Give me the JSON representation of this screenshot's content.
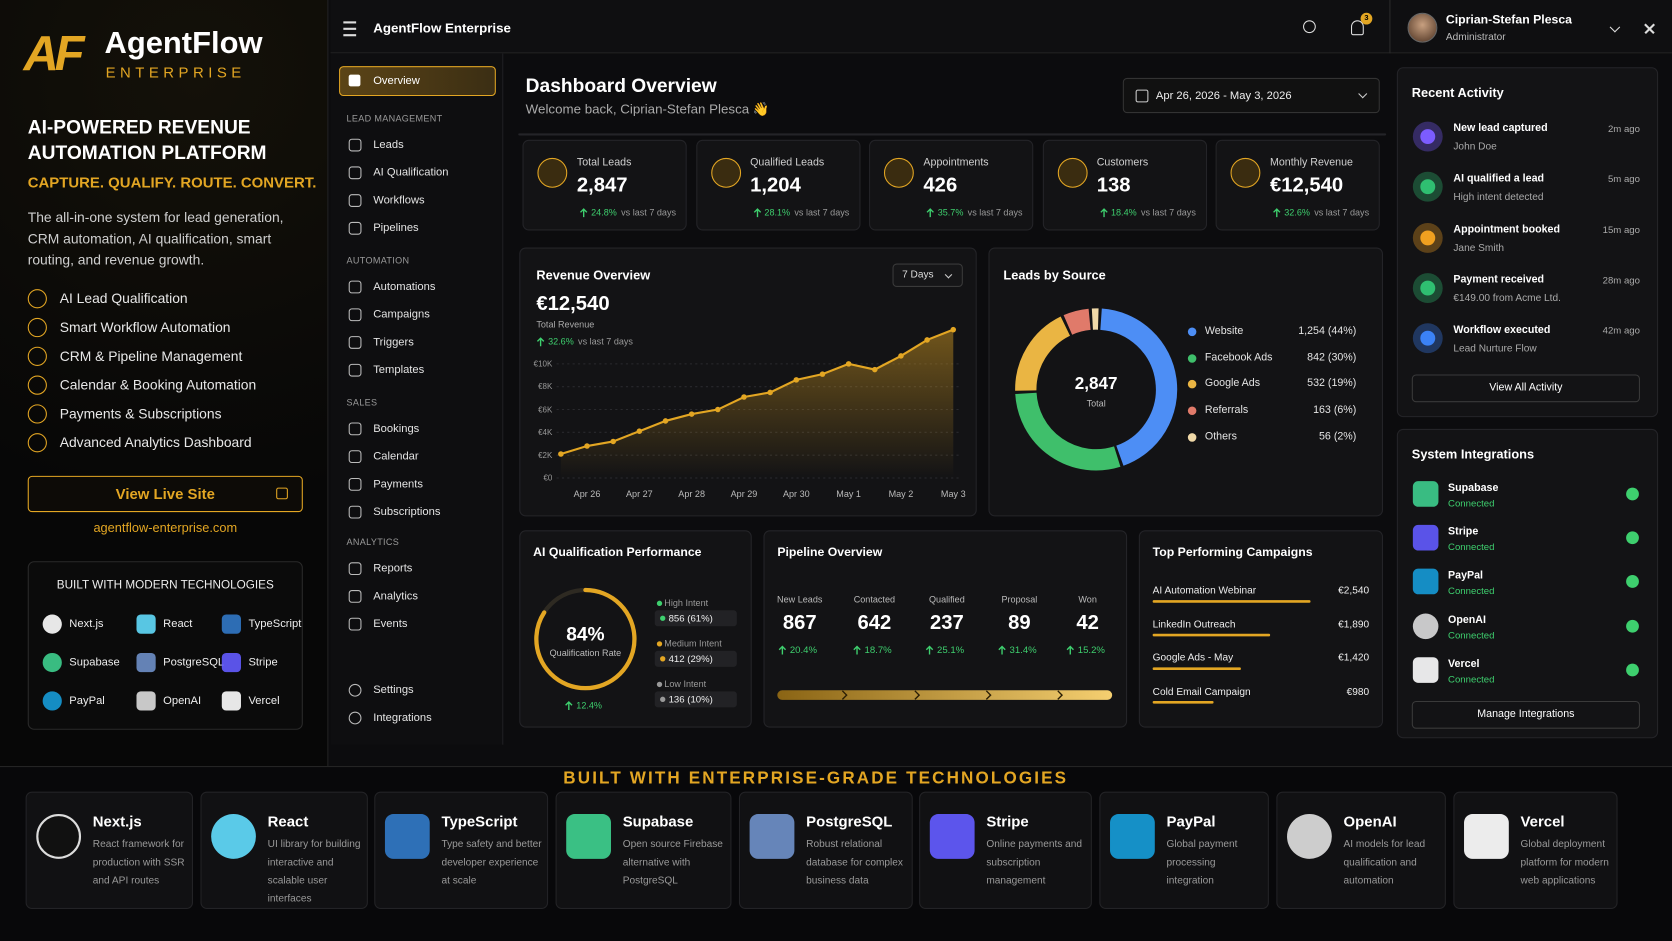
{
  "brand": {
    "logo": "AF",
    "name": "AgentFlow",
    "sub": "ENTERPRISE"
  },
  "promo": {
    "headline": "AI-POWERED REVENUE AUTOMATION PLATFORM",
    "tagline": "CAPTURE. QUALIFY. ROUTE. CONVERT.",
    "description": "The all-in-one system for lead generation, CRM automation, AI qualification, smart routing, and revenue growth.",
    "features": [
      "AI Lead Qualification",
      "Smart Workflow Automation",
      "CRM & Pipeline Management",
      "Calendar & Booking Automation",
      "Payments & Subscriptions",
      "Advanced Analytics Dashboard"
    ],
    "cta": "View Live Site",
    "url": "agentflow-enterprise.com",
    "tech_title": "BUILT WITH MODERN TECHNOLOGIES",
    "tech": [
      "Next.js",
      "React",
      "TypeScript",
      "Supabase",
      "PostgreSQL",
      "Stripe",
      "PayPal",
      "OpenAI",
      "Vercel"
    ]
  },
  "topbar": {
    "app": "AgentFlow Enterprise",
    "notifications": "3",
    "user": "Ciprian-Stefan Plesca",
    "role": "Administrator"
  },
  "sidebar": {
    "active": "Overview",
    "sections": [
      {
        "title": "LEAD MANAGEMENT",
        "items": [
          "Leads",
          "AI Qualification",
          "Workflows",
          "Pipelines"
        ]
      },
      {
        "title": "AUTOMATION",
        "items": [
          "Automations",
          "Campaigns",
          "Triggers",
          "Templates"
        ]
      },
      {
        "title": "SALES",
        "items": [
          "Bookings",
          "Calendar",
          "Payments",
          "Subscriptions"
        ]
      },
      {
        "title": "ANALYTICS",
        "items": [
          "Reports",
          "Analytics",
          "Events"
        ]
      }
    ],
    "footer": [
      "Settings",
      "Integrations"
    ]
  },
  "header": {
    "title": "Dashboard Overview",
    "welcome": "Welcome back, Ciprian-Stefan Plesca 👋",
    "date_range": "Apr 26, 2026 - May 3, 2026"
  },
  "kpis": [
    {
      "label": "Total Leads",
      "value": "2,847",
      "change": "24.8%",
      "note": "vs last 7 days"
    },
    {
      "label": "Qualified Leads",
      "value": "1,204",
      "change": "28.1%",
      "note": "vs last 7 days"
    },
    {
      "label": "Appointments",
      "value": "426",
      "change": "35.7%",
      "note": "vs last 7 days"
    },
    {
      "label": "Customers",
      "value": "138",
      "change": "18.4%",
      "note": "vs last 7 days"
    },
    {
      "label": "Monthly Revenue",
      "value": "€12,540",
      "change": "32.6%",
      "note": "vs last 7 days"
    }
  ],
  "chart_data": [
    {
      "type": "line",
      "title": "Revenue Overview",
      "range": "7 Days",
      "total": "€12,540",
      "total_label": "Total Revenue",
      "change": "32.6%",
      "change_note": "vs last 7 days",
      "color": "#e3a623",
      "categories": [
        null,
        "Apr 26",
        null,
        "Apr 27",
        null,
        "Apr 28",
        null,
        "Apr 29",
        null,
        "Apr 30",
        null,
        "May 1",
        null,
        "May 2",
        null,
        "May 3"
      ],
      "values": [
        2100,
        2800,
        3200,
        4100,
        5000,
        5600,
        6000,
        7100,
        7500,
        8600,
        9100,
        10000,
        9500,
        10700,
        12100,
        13000
      ],
      "ylim": [
        0,
        13000
      ],
      "yticks": [
        {
          "value": 0,
          "label": "€0"
        },
        {
          "value": 2000,
          "label": "€2K"
        },
        {
          "value": 4000,
          "label": "€4K"
        },
        {
          "value": 6000,
          "label": "€6K"
        },
        {
          "value": 8000,
          "label": "€8K"
        },
        {
          "value": 10000,
          "label": "€10K"
        }
      ],
      "grid": true
    },
    {
      "type": "pie",
      "title": "Leads by Source",
      "center_value": "2,847",
      "center_label": "Total",
      "categories": [
        "Website",
        "Facebook Ads",
        "Google Ads",
        "Referrals",
        "Others"
      ],
      "values": [
        1254,
        842,
        532,
        163,
        56
      ],
      "value_labels": [
        "1,254 (44%)",
        "842 (30%)",
        "532 (19%)",
        "163 (6%)",
        "56 (2%)"
      ],
      "colors": [
        "#4d8ef5",
        "#3fbf6b",
        "#eab543",
        "#e07a6a",
        "#f0d9a8"
      ]
    }
  ],
  "ai": {
    "title": "AI Qualification Performance",
    "rate": 84,
    "rate_label": "84%",
    "rate_caption": "Qualification Rate",
    "change": "12.4%",
    "intents": [
      {
        "label": "High Intent",
        "value": "856 (61%)"
      },
      {
        "label": "Medium Intent",
        "value": "412 (29%)"
      },
      {
        "label": "Low Intent",
        "value": "136 (10%)"
      }
    ]
  },
  "pipeline": {
    "title": "Pipeline Overview",
    "stages": [
      {
        "label": "New Leads",
        "value": 867,
        "change": "20.4%"
      },
      {
        "label": "Contacted",
        "value": 642,
        "change": "18.7%"
      },
      {
        "label": "Qualified",
        "value": 237,
        "change": "25.1%"
      },
      {
        "label": "Proposal",
        "value": 89,
        "change": "31.4%"
      },
      {
        "label": "Won",
        "value": 42,
        "change": "15.2%"
      }
    ]
  },
  "campaigns": {
    "title": "Top Performing Campaigns",
    "names": [
      "AI Automation Webinar",
      "LinkedIn Outreach",
      "Google Ads - May",
      "Cold Email Campaign"
    ],
    "values": [
      2540,
      1890,
      1420,
      980
    ],
    "value_labels": [
      "€2,540",
      "€1,890",
      "€1,420",
      "€980"
    ]
  },
  "activity": {
    "title": "Recent Activity",
    "items": [
      {
        "title": "New lead captured",
        "desc": "John Doe",
        "time": "2m ago"
      },
      {
        "title": "AI qualified a lead",
        "desc": "High intent detected",
        "time": "5m ago"
      },
      {
        "title": "Appointment booked",
        "desc": "Jane Smith",
        "time": "15m ago"
      },
      {
        "title": "Payment received",
        "desc": "€149.00 from Acme Ltd.",
        "time": "28m ago"
      },
      {
        "title": "Workflow executed",
        "desc": "Lead Nurture Flow",
        "time": "42m ago"
      }
    ],
    "button": "View All Activity"
  },
  "integrations": {
    "title": "System Integrations",
    "items": [
      {
        "name": "Supabase",
        "status": "Connected"
      },
      {
        "name": "Stripe",
        "status": "Connected"
      },
      {
        "name": "PayPal",
        "status": "Connected"
      },
      {
        "name": "OpenAI",
        "status": "Connected"
      },
      {
        "name": "Vercel",
        "status": "Connected"
      }
    ],
    "button": "Manage Integrations"
  },
  "showcase": {
    "title": "BUILT WITH ENTERPRISE-GRADE TECHNOLOGIES",
    "cards": [
      {
        "name": "Next.js",
        "desc": "React framework for production with SSR and API routes"
      },
      {
        "name": "React",
        "desc": "UI library for building interactive and scalable user interfaces"
      },
      {
        "name": "TypeScript",
        "desc": "Type safety and better developer experience at scale"
      },
      {
        "name": "Supabase",
        "desc": "Open source Firebase alternative with PostgreSQL"
      },
      {
        "name": "PostgreSQL",
        "desc": "Robust relational database for complex business data"
      },
      {
        "name": "Stripe",
        "desc": "Online payments and subscription management"
      },
      {
        "name": "PayPal",
        "desc": "Global payment processing integration"
      },
      {
        "name": "OpenAI",
        "desc": "AI models for lead qualification and automation"
      },
      {
        "name": "Vercel",
        "desc": "Global deployment platform for modern web applications"
      }
    ]
  }
}
